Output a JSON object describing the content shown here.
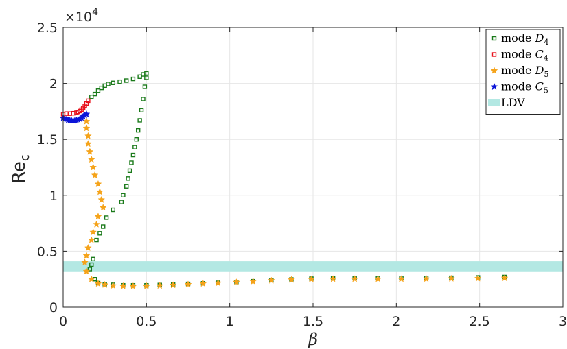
{
  "chart_data": {
    "type": "scatter",
    "title": "",
    "xlabel": "β",
    "ylabel": "Re",
    "ylabel_sub": "c",
    "y_multiplier_label": "×10",
    "y_multiplier_exp": "4",
    "xlim": [
      0,
      3
    ],
    "ylim": [
      0,
      25000
    ],
    "xticks": [
      0,
      0.5,
      1,
      1.5,
      2,
      2.5,
      3
    ],
    "xtick_labels": [
      "0",
      "0.5",
      "1",
      "1.5",
      "2",
      "2.5",
      "3"
    ],
    "yticks": [
      0,
      5000,
      10000,
      15000,
      20000,
      25000
    ],
    "ytick_labels": [
      "0",
      "0.5",
      "1",
      "1.5",
      "2",
      "2.5"
    ],
    "grid": true,
    "legend_position": "top-right",
    "band": {
      "name": "LDV",
      "color": "#b3e8e3",
      "y0": 3200,
      "y1": 4100
    },
    "series": [
      {
        "name": "mode D",
        "name_sub": "4",
        "marker": "square",
        "color": "#1a7a1a",
        "points": [
          [
            0.16,
            3400
          ],
          [
            0.17,
            3800
          ],
          [
            0.18,
            4300
          ],
          [
            0.19,
            2500
          ],
          [
            0.21,
            2150
          ],
          [
            0.25,
            2050
          ],
          [
            0.3,
            2000
          ],
          [
            0.36,
            1950
          ],
          [
            0.42,
            1950
          ],
          [
            0.5,
            1950
          ],
          [
            0.58,
            1980
          ],
          [
            0.66,
            2030
          ],
          [
            0.75,
            2080
          ],
          [
            0.84,
            2130
          ],
          [
            0.93,
            2180
          ],
          [
            1.04,
            2250
          ],
          [
            1.14,
            2320
          ],
          [
            1.25,
            2400
          ],
          [
            1.37,
            2480
          ],
          [
            1.49,
            2550
          ],
          [
            1.62,
            2580
          ],
          [
            1.75,
            2600
          ],
          [
            1.89,
            2600
          ],
          [
            2.03,
            2620
          ],
          [
            2.18,
            2620
          ],
          [
            2.33,
            2630
          ],
          [
            2.49,
            2660
          ],
          [
            2.65,
            2700
          ],
          [
            0.2,
            6000
          ],
          [
            0.22,
            6600
          ],
          [
            0.24,
            7200
          ],
          [
            0.26,
            8000
          ],
          [
            0.3,
            8700
          ],
          [
            0.35,
            9400
          ],
          [
            0.36,
            10000
          ],
          [
            0.38,
            10800
          ],
          [
            0.39,
            11500
          ],
          [
            0.4,
            12200
          ],
          [
            0.41,
            12900
          ],
          [
            0.42,
            13600
          ],
          [
            0.43,
            14300
          ],
          [
            0.44,
            15000
          ],
          [
            0.45,
            15800
          ],
          [
            0.46,
            16700
          ],
          [
            0.47,
            17600
          ],
          [
            0.48,
            18600
          ],
          [
            0.49,
            19700
          ],
          [
            0.5,
            20500
          ],
          [
            0.5,
            20900
          ],
          [
            0.48,
            20800
          ],
          [
            0.46,
            20600
          ],
          [
            0.42,
            20400
          ],
          [
            0.38,
            20250
          ],
          [
            0.34,
            20150
          ],
          [
            0.3,
            20050
          ],
          [
            0.27,
            19950
          ],
          [
            0.25,
            19800
          ],
          [
            0.23,
            19600
          ],
          [
            0.21,
            19350
          ],
          [
            0.19,
            19050
          ],
          [
            0.17,
            18800
          ]
        ]
      },
      {
        "name": "mode C",
        "name_sub": "4",
        "marker": "square",
        "color": "#e8121c",
        "points": [
          [
            0.0,
            17250
          ],
          [
            0.02,
            17300
          ],
          [
            0.04,
            17300
          ],
          [
            0.06,
            17330
          ],
          [
            0.08,
            17380
          ],
          [
            0.09,
            17450
          ],
          [
            0.1,
            17530
          ],
          [
            0.11,
            17650
          ],
          [
            0.12,
            17800
          ],
          [
            0.13,
            18000
          ],
          [
            0.14,
            18200
          ],
          [
            0.15,
            18450
          ]
        ]
      },
      {
        "name": "mode D",
        "name_sub": "5",
        "marker": "star",
        "color": "#f5a31a",
        "points": [
          [
            0.14,
            16600
          ],
          [
            0.14,
            16000
          ],
          [
            0.15,
            15300
          ],
          [
            0.15,
            14600
          ],
          [
            0.16,
            13900
          ],
          [
            0.17,
            13200
          ],
          [
            0.18,
            12500
          ],
          [
            0.19,
            11800
          ],
          [
            0.21,
            11000
          ],
          [
            0.22,
            10300
          ],
          [
            0.23,
            9600
          ],
          [
            0.24,
            8900
          ],
          [
            0.21,
            8100
          ],
          [
            0.2,
            7400
          ],
          [
            0.18,
            6700
          ],
          [
            0.17,
            6000
          ],
          [
            0.15,
            5300
          ],
          [
            0.14,
            4600
          ],
          [
            0.13,
            4000
          ],
          [
            0.14,
            3200
          ],
          [
            0.17,
            2500
          ],
          [
            0.21,
            2100
          ],
          [
            0.25,
            2000
          ],
          [
            0.3,
            1920
          ],
          [
            0.36,
            1880
          ],
          [
            0.42,
            1870
          ],
          [
            0.5,
            1880
          ],
          [
            0.58,
            1920
          ],
          [
            0.66,
            1970
          ],
          [
            0.75,
            2030
          ],
          [
            0.84,
            2100
          ],
          [
            0.93,
            2160
          ],
          [
            1.04,
            2230
          ],
          [
            1.14,
            2300
          ],
          [
            1.25,
            2380
          ],
          [
            1.37,
            2450
          ],
          [
            1.49,
            2500
          ],
          [
            1.62,
            2520
          ],
          [
            1.75,
            2520
          ],
          [
            1.89,
            2520
          ],
          [
            2.03,
            2520
          ],
          [
            2.18,
            2530
          ],
          [
            2.33,
            2550
          ],
          [
            2.49,
            2570
          ],
          [
            2.65,
            2600
          ]
        ]
      },
      {
        "name": "mode C",
        "name_sub": "5",
        "marker": "star",
        "color": "#0b14d8",
        "points": [
          [
            0.0,
            16900
          ],
          [
            0.01,
            16850
          ],
          [
            0.02,
            16780
          ],
          [
            0.03,
            16730
          ],
          [
            0.04,
            16700
          ],
          [
            0.05,
            16680
          ],
          [
            0.06,
            16670
          ],
          [
            0.07,
            16680
          ],
          [
            0.08,
            16700
          ],
          [
            0.09,
            16750
          ],
          [
            0.1,
            16820
          ],
          [
            0.11,
            16920
          ],
          [
            0.12,
            17030
          ],
          [
            0.13,
            17150
          ],
          [
            0.14,
            17250
          ]
        ]
      }
    ]
  }
}
